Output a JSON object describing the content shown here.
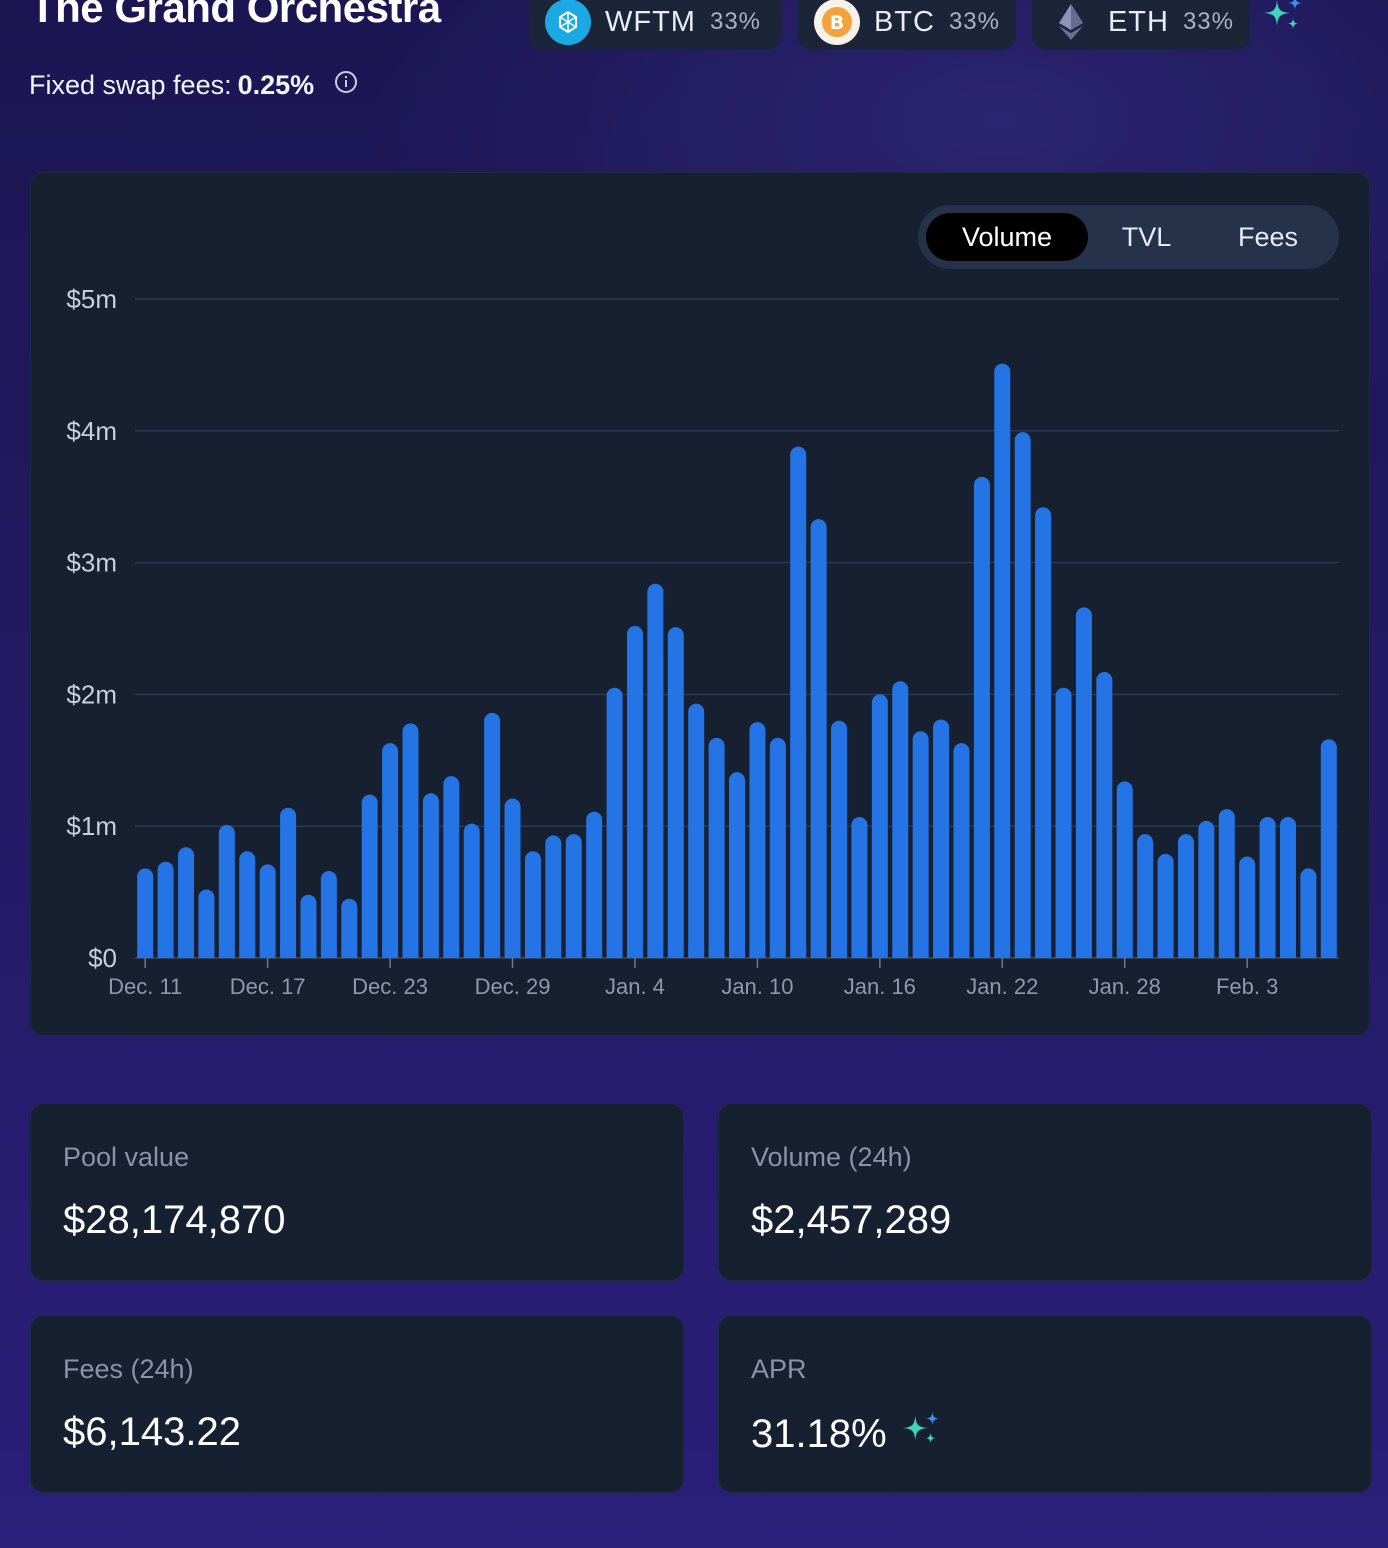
{
  "header": {
    "title": "The Grand Orchestra",
    "tokens": [
      {
        "name": "WFTM",
        "pct": "33%",
        "icon": "wftm-icon"
      },
      {
        "name": "BTC",
        "pct": "33%",
        "icon": "btc-icon"
      },
      {
        "name": "ETH",
        "pct": "33%",
        "icon": "eth-icon"
      }
    ],
    "sparkle_icon": "sparkle-icon",
    "fees_label": "Fixed swap fees:",
    "fees_value": "0.25%"
  },
  "chart_tabs": [
    {
      "label": "Volume",
      "active": true
    },
    {
      "label": "TVL",
      "active": false
    },
    {
      "label": "Fees",
      "active": false
    }
  ],
  "chart_data": {
    "type": "bar",
    "series": [
      {
        "values": [
          0.68,
          0.73,
          0.84,
          0.52,
          1.01,
          0.81,
          0.71,
          1.14,
          0.48,
          0.66,
          0.45,
          1.24,
          1.63,
          1.78,
          1.25,
          1.38,
          1.02,
          1.86,
          1.21,
          0.81,
          0.93,
          0.94,
          1.11,
          2.05,
          2.52,
          2.84,
          2.51,
          1.93,
          1.67,
          1.41,
          1.79,
          1.67,
          3.88,
          3.33,
          1.8,
          1.07,
          2.0,
          2.1,
          1.72,
          1.81,
          1.63,
          3.65,
          4.51,
          3.99,
          3.42,
          2.05,
          2.66,
          2.17,
          1.34,
          0.94,
          0.79,
          0.94,
          1.04,
          1.13,
          0.77,
          1.07,
          1.07,
          0.68,
          1.66
        ]
      }
    ],
    "x_start": "Dec. 11",
    "x_tick_labels": [
      "Dec. 11",
      "Dec. 17",
      "Dec. 23",
      "Dec. 29",
      "Jan. 4",
      "Jan. 10",
      "Jan. 16",
      "Jan. 22",
      "Jan. 28",
      "Feb. 3"
    ],
    "y_tick_labels": [
      "$0",
      "$1m",
      "$2m",
      "$3m",
      "$4m",
      "$5m"
    ],
    "ylim": [
      0,
      5
    ],
    "y_unit": "$m",
    "grid": true,
    "bar_color": "#2474e5",
    "grid_color": "#2c3a50"
  },
  "stats": [
    {
      "label": "Pool value",
      "value": "$28,174,870"
    },
    {
      "label": "Volume (24h)",
      "value": "$2,457,289"
    },
    {
      "label": "Fees (24h)",
      "value": "$6,143.22"
    },
    {
      "label": "APR",
      "value": "31.18%",
      "sparkle": true
    }
  ],
  "colors": {
    "accent_teal": "#3fd6c0",
    "card_bg": "#162031",
    "bar": "#2474e5"
  }
}
